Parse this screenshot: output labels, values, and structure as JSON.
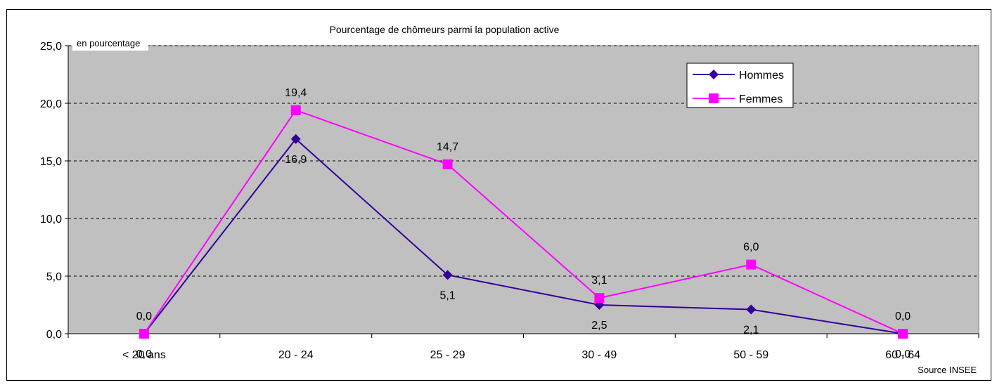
{
  "chart_data": {
    "type": "line",
    "title": "Pourcentage de chômeurs parmi la population active",
    "unit_label": "en pourcentage",
    "source": "Source INSEE",
    "categories": [
      "< 20 ans",
      "20 - 24",
      "25 - 29",
      "30 - 49",
      "50 - 59",
      "60 - 64"
    ],
    "ylim": [
      0,
      25
    ],
    "yticks": [
      "0,0",
      "5,0",
      "10,0",
      "15,0",
      "20,0",
      "25,0"
    ],
    "grid": "horizontal dashed",
    "legend_position": "top-right",
    "plot_background": "#c0c0c0",
    "series": [
      {
        "name": "Hommes",
        "color": "#330099",
        "marker": "diamond",
        "values": [
          0.0,
          16.9,
          5.1,
          2.5,
          2.1,
          0.0
        ],
        "labels": [
          "0,0",
          "16,9",
          "5,1",
          "2,5",
          "2,1",
          "0,0"
        ]
      },
      {
        "name": "Femmes",
        "color": "#ff00ff",
        "marker": "square",
        "values": [
          0.0,
          19.4,
          14.7,
          3.1,
          6.0,
          0.0
        ],
        "labels": [
          "0,0",
          "19,4",
          "14,7",
          "3,1",
          "6,0",
          "0,0"
        ]
      }
    ]
  }
}
